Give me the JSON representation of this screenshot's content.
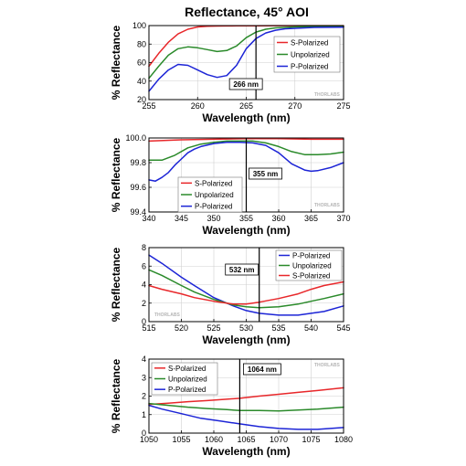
{
  "page_title": "Reflectance, 45° AOI",
  "watermark": "THORLABS",
  "colors": {
    "s": "#e8272a",
    "u": "#2a8a2a",
    "p": "#1c24d6"
  },
  "chart_data": [
    {
      "type": "line",
      "xlabel": "Wavelength (nm)",
      "ylabel": "% Reflectance",
      "xlim": [
        255,
        275
      ],
      "ylim": [
        20,
        100
      ],
      "xticks": [
        "255",
        "260",
        "265",
        "270",
        "275"
      ],
      "yticks": [
        "20",
        "40",
        "60",
        "80",
        "100"
      ],
      "marker": 266,
      "marker_label": "266 nm",
      "legend": "right",
      "series": [
        {
          "name": "S-Polarized",
          "key": "s",
          "x": [
            255,
            256,
            257,
            258,
            259,
            260,
            261,
            262,
            263,
            264,
            265,
            266,
            268,
            270,
            272,
            275
          ],
          "y": [
            56,
            70,
            82,
            91,
            96,
            98.5,
            99.2,
            99.5,
            99.6,
            99.7,
            99.8,
            99.8,
            99.9,
            99.9,
            99.9,
            99.9
          ]
        },
        {
          "name": "Unpolarized",
          "key": "u",
          "x": [
            255,
            256,
            257,
            258,
            259,
            260,
            261,
            262,
            263,
            264,
            265,
            266,
            267,
            268,
            270,
            272,
            275
          ],
          "y": [
            43,
            56,
            68,
            75,
            77,
            76,
            74,
            72,
            73,
            78,
            87,
            93,
            96,
            97.5,
            98.5,
            99,
            99
          ]
        },
        {
          "name": "P-Polarized",
          "key": "p",
          "x": [
            255,
            256,
            257,
            258,
            259,
            260,
            261,
            262,
            263,
            264,
            265,
            266,
            267,
            268,
            269,
            270,
            272,
            275
          ],
          "y": [
            29,
            42,
            52,
            58,
            57,
            52,
            47,
            44,
            46,
            57,
            75,
            86,
            92,
            95,
            96.5,
            97,
            98,
            98.3
          ]
        }
      ]
    },
    {
      "type": "line",
      "xlabel": "Wavelength (nm)",
      "ylabel": "% Reflectance",
      "xlim": [
        340,
        370
      ],
      "ylim": [
        99.4,
        100.0
      ],
      "xticks": [
        "340",
        "345",
        "350",
        "355",
        "360",
        "365",
        "370"
      ],
      "yticks": [
        "99.4",
        "99.6",
        "99.8",
        "100.0"
      ],
      "marker": 355,
      "marker_label": "355 nm",
      "legend": "bottom-left",
      "series": [
        {
          "name": "S-Polarized",
          "key": "s",
          "x": [
            340,
            345,
            350,
            355,
            360,
            365,
            370
          ],
          "y": [
            99.975,
            99.985,
            99.99,
            99.995,
            99.995,
            99.99,
            99.99
          ]
        },
        {
          "name": "Unpolarized",
          "key": "u",
          "x": [
            340,
            342,
            344,
            346,
            348,
            350,
            352,
            354,
            356,
            358,
            360,
            362,
            364,
            366,
            368,
            370
          ],
          "y": [
            99.82,
            99.82,
            99.86,
            99.92,
            99.95,
            99.965,
            99.975,
            99.975,
            99.975,
            99.96,
            99.93,
            99.89,
            99.865,
            99.865,
            99.87,
            99.885
          ]
        },
        {
          "name": "P-Polarized",
          "key": "p",
          "x": [
            340,
            341,
            342,
            343,
            344,
            345,
            346,
            347,
            348,
            350,
            352,
            354,
            356,
            358,
            360,
            362,
            364,
            365,
            366,
            368,
            370
          ],
          "y": [
            99.66,
            99.65,
            99.68,
            99.72,
            99.78,
            99.83,
            99.88,
            99.91,
            99.93,
            99.955,
            99.965,
            99.965,
            99.96,
            99.94,
            99.88,
            99.79,
            99.74,
            99.73,
            99.735,
            99.76,
            99.8
          ]
        }
      ]
    },
    {
      "type": "line",
      "xlabel": "Wavelength (nm)",
      "ylabel": "% Reflectance",
      "xlim": [
        515,
        545
      ],
      "ylim": [
        0,
        8
      ],
      "xticks": [
        "515",
        "520",
        "525",
        "530",
        "535",
        "540",
        "545"
      ],
      "yticks": [
        "0",
        "2",
        "4",
        "6",
        "8"
      ],
      "marker": 532,
      "marker_label": "532 nm",
      "legend": "top-right",
      "series": [
        {
          "name": "P-Polarized",
          "key": "p",
          "x": [
            515,
            517,
            520,
            522,
            525,
            528,
            530,
            532,
            535,
            538,
            540,
            542,
            545
          ],
          "y": [
            7.2,
            6.3,
            4.8,
            3.9,
            2.6,
            1.7,
            1.2,
            0.9,
            0.7,
            0.7,
            0.9,
            1.1,
            1.7
          ]
        },
        {
          "name": "Unpolarized",
          "key": "u",
          "x": [
            515,
            517,
            520,
            522,
            525,
            528,
            530,
            532,
            535,
            538,
            540,
            542,
            545
          ],
          "y": [
            5.6,
            5.0,
            3.9,
            3.2,
            2.4,
            1.8,
            1.6,
            1.5,
            1.6,
            1.9,
            2.2,
            2.5,
            3.0
          ]
        },
        {
          "name": "S-Polarized",
          "key": "s",
          "x": [
            515,
            517,
            520,
            522,
            525,
            528,
            530,
            532,
            535,
            538,
            540,
            542,
            545
          ],
          "y": [
            3.9,
            3.5,
            3.0,
            2.6,
            2.2,
            1.9,
            1.9,
            2.1,
            2.5,
            3.0,
            3.5,
            3.9,
            4.3
          ]
        }
      ]
    },
    {
      "type": "line",
      "xlabel": "Wavelength (nm)",
      "ylabel": "% Reflectance",
      "xlim": [
        1050,
        1080
      ],
      "ylim": [
        0,
        4
      ],
      "xticks": [
        "1050",
        "1055",
        "1060",
        "1065",
        "1070",
        "1075",
        "1080"
      ],
      "yticks": [
        "0",
        "1",
        "2",
        "3",
        "4"
      ],
      "marker": 1064,
      "marker_label": "1064 nm",
      "legend": "top-left",
      "series": [
        {
          "name": "S-Polarized",
          "key": "s",
          "x": [
            1050,
            1053,
            1056,
            1059,
            1062,
            1064,
            1067,
            1070,
            1073,
            1076,
            1080
          ],
          "y": [
            1.55,
            1.62,
            1.7,
            1.76,
            1.83,
            1.88,
            2.0,
            2.1,
            2.2,
            2.3,
            2.45
          ]
        },
        {
          "name": "Unpolarized",
          "key": "u",
          "x": [
            1050,
            1053,
            1056,
            1059,
            1062,
            1064,
            1067,
            1070,
            1073,
            1076,
            1080
          ],
          "y": [
            1.6,
            1.5,
            1.4,
            1.33,
            1.27,
            1.22,
            1.22,
            1.2,
            1.25,
            1.3,
            1.4
          ]
        },
        {
          "name": "P-Polarized",
          "key": "p",
          "x": [
            1050,
            1052,
            1055,
            1058,
            1061,
            1064,
            1067,
            1070,
            1073,
            1076,
            1078,
            1080
          ],
          "y": [
            1.5,
            1.3,
            1.05,
            0.8,
            0.65,
            0.5,
            0.35,
            0.25,
            0.2,
            0.2,
            0.25,
            0.3
          ]
        }
      ]
    }
  ]
}
